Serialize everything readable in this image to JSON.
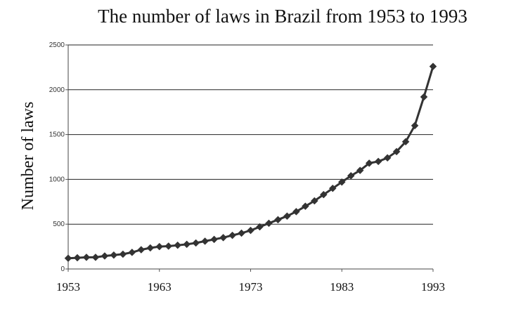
{
  "chart_data": {
    "type": "line",
    "title": "The number of laws in Brazil from 1953 to 1993",
    "xlabel": "",
    "ylabel": "Number of laws",
    "xlim": [
      1953,
      1993
    ],
    "ylim": [
      0,
      2500
    ],
    "x_ticks": [
      "1953",
      "1963",
      "1973",
      "1983",
      "1993"
    ],
    "y_ticks": [
      "0",
      "500",
      "1000",
      "1500",
      "2000",
      "2500"
    ],
    "grid": "horizontal",
    "legend": "none",
    "line_color": "#333333",
    "series": [
      {
        "marker": "diamond",
        "x": [
          1953,
          1954,
          1955,
          1956,
          1957,
          1958,
          1959,
          1960,
          1961,
          1962,
          1963,
          1964,
          1965,
          1966,
          1967,
          1968,
          1969,
          1970,
          1971,
          1972,
          1973,
          1974,
          1975,
          1976,
          1977,
          1978,
          1979,
          1980,
          1981,
          1982,
          1983,
          1984,
          1985,
          1986,
          1987,
          1988,
          1989,
          1990,
          1991,
          1992,
          1993
        ],
        "y": [
          120,
          125,
          130,
          130,
          145,
          155,
          165,
          185,
          215,
          235,
          250,
          255,
          265,
          275,
          290,
          310,
          330,
          350,
          375,
          400,
          430,
          470,
          510,
          550,
          590,
          640,
          700,
          760,
          830,
          900,
          970,
          1040,
          1100,
          1180,
          1200,
          1240,
          1310,
          1420,
          1600,
          1920,
          2260
        ]
      }
    ]
  }
}
